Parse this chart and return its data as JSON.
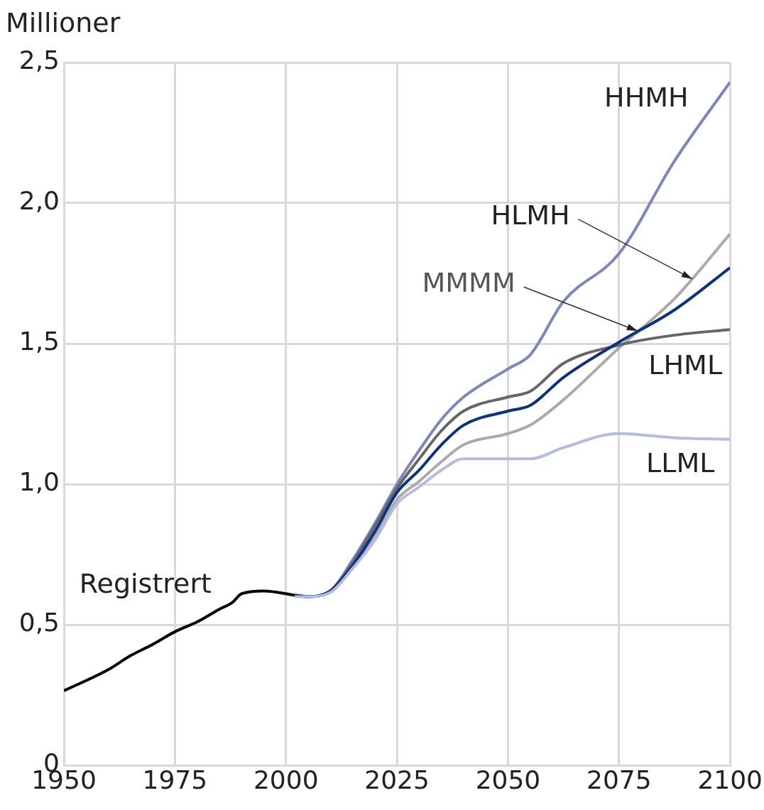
{
  "chart_data": {
    "type": "line",
    "ylabel": "Millioner",
    "x": [
      2002,
      2005,
      2010,
      2015,
      2020,
      2025,
      2030,
      2035,
      2040,
      2050,
      2055,
      2062.5,
      2075,
      2087.5,
      2100
    ],
    "series": [
      {
        "color": "#000000",
        "x": [
          1950,
          1960,
          1965,
          1970,
          1975,
          1980,
          1985,
          1988,
          1990,
          1995,
          2002
        ],
        "values": [
          0.265,
          0.34,
          0.39,
          0.43,
          0.475,
          0.51,
          0.555,
          0.58,
          0.61,
          0.62,
          0.605
        ]
      },
      {
        "color": "#7b88bf",
        "values": [
          0.605,
          0.6,
          0.62,
          0.73,
          0.86,
          1.0,
          1.12,
          1.23,
          1.31,
          1.41,
          1.46,
          1.65,
          1.82,
          2.15,
          2.43
        ]
      },
      {
        "color": "#aaaaaa",
        "values": [
          0.605,
          0.6,
          0.62,
          0.7,
          0.81,
          0.945,
          1.01,
          1.08,
          1.14,
          1.18,
          1.21,
          1.3,
          1.485,
          1.66,
          1.89
        ]
      },
      {
        "color": "#666666",
        "values": [
          0.605,
          0.6,
          0.62,
          0.72,
          0.85,
          0.985,
          1.09,
          1.19,
          1.26,
          1.31,
          1.33,
          1.43,
          1.495,
          1.53,
          1.55
        ]
      },
      {
        "color": "#0a3182",
        "values": [
          0.605,
          0.6,
          0.62,
          0.71,
          0.83,
          0.97,
          1.05,
          1.14,
          1.21,
          1.26,
          1.28,
          1.38,
          1.505,
          1.62,
          1.77
        ]
      },
      {
        "color": "#b4bce0",
        "values": [
          0.6,
          0.6,
          0.615,
          0.7,
          0.8,
          0.93,
          0.99,
          1.05,
          1.09,
          1.09,
          1.09,
          1.13,
          1.18,
          1.165,
          1.16
        ]
      }
    ],
    "annotations": [
      {
        "text": "Registrert",
        "x": 1985,
        "y": 0.555
      },
      {
        "text": "HHMH",
        "x": 2085,
        "y": 2.09
      },
      {
        "text": "HLMH",
        "x": 2091.5,
        "y": 1.73
      },
      {
        "text": "MMMM",
        "x": 2079.2,
        "y": 1.545
      },
      {
        "text": "LHML",
        "x": 2100,
        "y": 1.55
      },
      {
        "text": "LLML",
        "x": 2100,
        "y": 1.16
      }
    ],
    "xlim": [
      1950,
      2100
    ],
    "xticks": [
      1950,
      1975,
      2000,
      2025,
      2050,
      2075,
      2100
    ],
    "ylim": [
      0,
      2.5
    ],
    "yticks": [
      0,
      {
        "value": 0.5,
        "label": "0,5"
      },
      {
        "value": 1,
        "label": "1,0"
      },
      {
        "value": 1.5,
        "label": "1,5"
      },
      {
        "value": 2,
        "label": "2,0"
      },
      {
        "value": 2.5,
        "label": "2,5"
      }
    ],
    "grid": true,
    "legend": false
  }
}
